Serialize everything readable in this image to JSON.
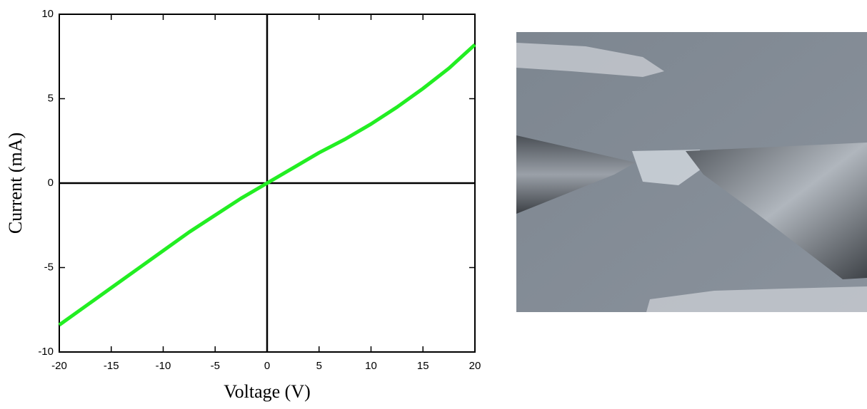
{
  "chart_data": {
    "type": "line",
    "xlabel": "Voltage (V)",
    "ylabel": "Current (mA)",
    "x": [
      -20,
      -17.5,
      -15,
      -12.5,
      -10,
      -7.5,
      -5,
      -2.5,
      0,
      2.5,
      5,
      7.5,
      10,
      12.5,
      15,
      17.5,
      20
    ],
    "values": [
      -8.4,
      -7.3,
      -6.2,
      -5.1,
      -4.0,
      -2.9,
      -1.9,
      -0.9,
      0,
      0.9,
      1.8,
      2.6,
      3.5,
      4.5,
      5.6,
      6.8,
      8.2
    ],
    "color": "#22ee22",
    "xlim": [
      -20,
      20
    ],
    "xticks": [
      -20,
      -15,
      -10,
      -5,
      0,
      5,
      10,
      15,
      20
    ],
    "ylim": [
      -10,
      10
    ],
    "yticks": [
      -10,
      -5,
      0,
      5,
      10
    ],
    "zero_lines": true
  }
}
